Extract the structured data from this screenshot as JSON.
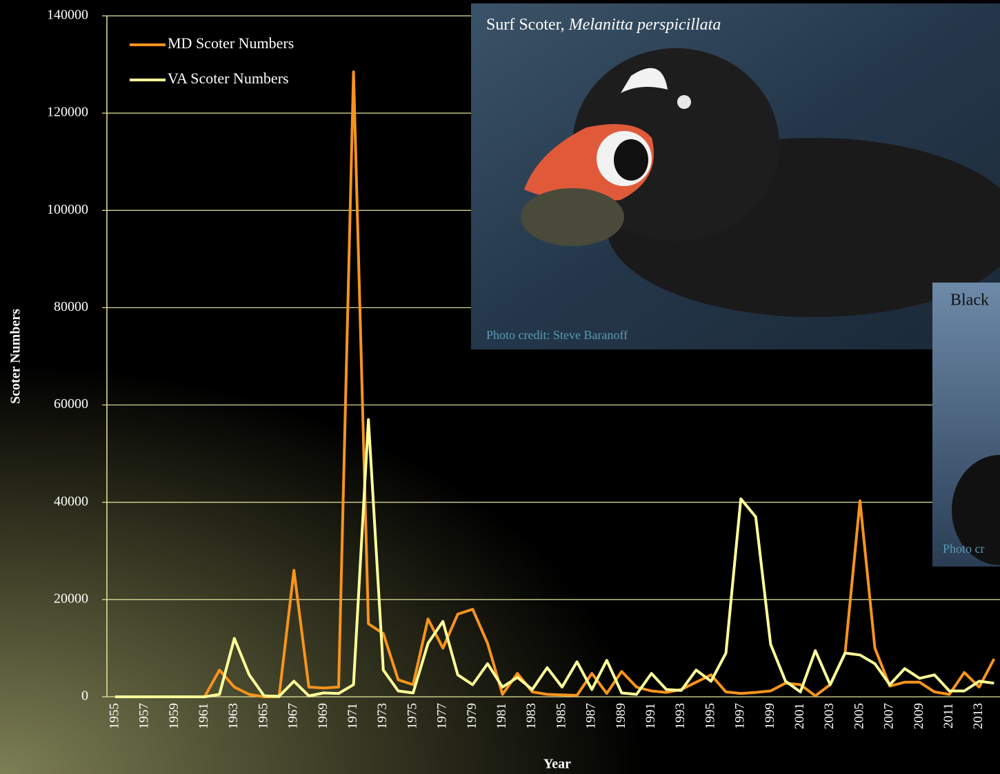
{
  "chart_data": {
    "type": "line",
    "y_label": "Scoter Numbers",
    "x_label": "Year",
    "categories": [
      "1955",
      null,
      "1957",
      null,
      "1959",
      null,
      "1961",
      null,
      "1963",
      null,
      "1965",
      null,
      "1967",
      null,
      "1969",
      null,
      "1971",
      null,
      "1973",
      null,
      "1975",
      null,
      "1977",
      null,
      "1979",
      null,
      "1981",
      null,
      "1983",
      null,
      "1985",
      null,
      "1987",
      null,
      "1989",
      null,
      "1991",
      null,
      "1993",
      null,
      "1995",
      null,
      "1997",
      null,
      "1999",
      null,
      "2001",
      null,
      "2003",
      null,
      "2005",
      null,
      "2007",
      null,
      "2009",
      null,
      "2011",
      null,
      "2013",
      null
    ],
    "series": [
      {
        "name": "MD Scoter Numbers",
        "color": "#f7941d",
        "values": [
          0,
          0,
          0,
          0,
          0,
          0,
          0,
          5500,
          2000,
          500,
          0,
          0,
          26000,
          2000,
          1800,
          2000,
          128500,
          15000,
          13000,
          3500,
          2500,
          16000,
          10000,
          17000,
          18000,
          11000,
          500,
          4800,
          1000,
          500,
          400,
          300,
          4800,
          700,
          5200,
          2000,
          1200,
          900,
          1500,
          3000,
          4500,
          1000,
          700,
          900,
          1200,
          2800,
          2500,
          200,
          2500,
          9000,
          40300,
          10000,
          2200,
          3000,
          3000,
          1000,
          500,
          5000,
          2000,
          7800
        ]
      },
      {
        "name": "VA Scoter Numbers",
        "color": "#ffff99",
        "values": [
          0,
          0,
          0,
          0,
          0,
          0,
          0,
          500,
          12000,
          4500,
          200,
          100,
          3200,
          200,
          800,
          700,
          2500,
          57000,
          5500,
          1200,
          800,
          11000,
          15500,
          4500,
          2500,
          6800,
          2000,
          4000,
          1500,
          6000,
          2000,
          7200,
          1500,
          7500,
          800,
          500,
          4800,
          1500,
          1300,
          5500,
          3200,
          9000,
          40700,
          37000,
          10800,
          3200,
          1000,
          9500,
          2500,
          9000,
          8600,
          6800,
          2500,
          5800,
          3800,
          4500,
          1200,
          1200,
          3200,
          2800
        ]
      }
    ],
    "ylim": [
      0,
      140000
    ],
    "yticks": [
      0,
      20000,
      40000,
      60000,
      80000,
      100000,
      120000,
      140000
    ],
    "grid": true,
    "legend": "upper left",
    "photos": [
      {
        "caption": "Surf Scoter,",
        "species": "Melanitta perspicillata",
        "credit": "Photo credit: Steve Baranoff"
      },
      {
        "caption": "Black",
        "credit": "Photo cr"
      }
    ]
  }
}
